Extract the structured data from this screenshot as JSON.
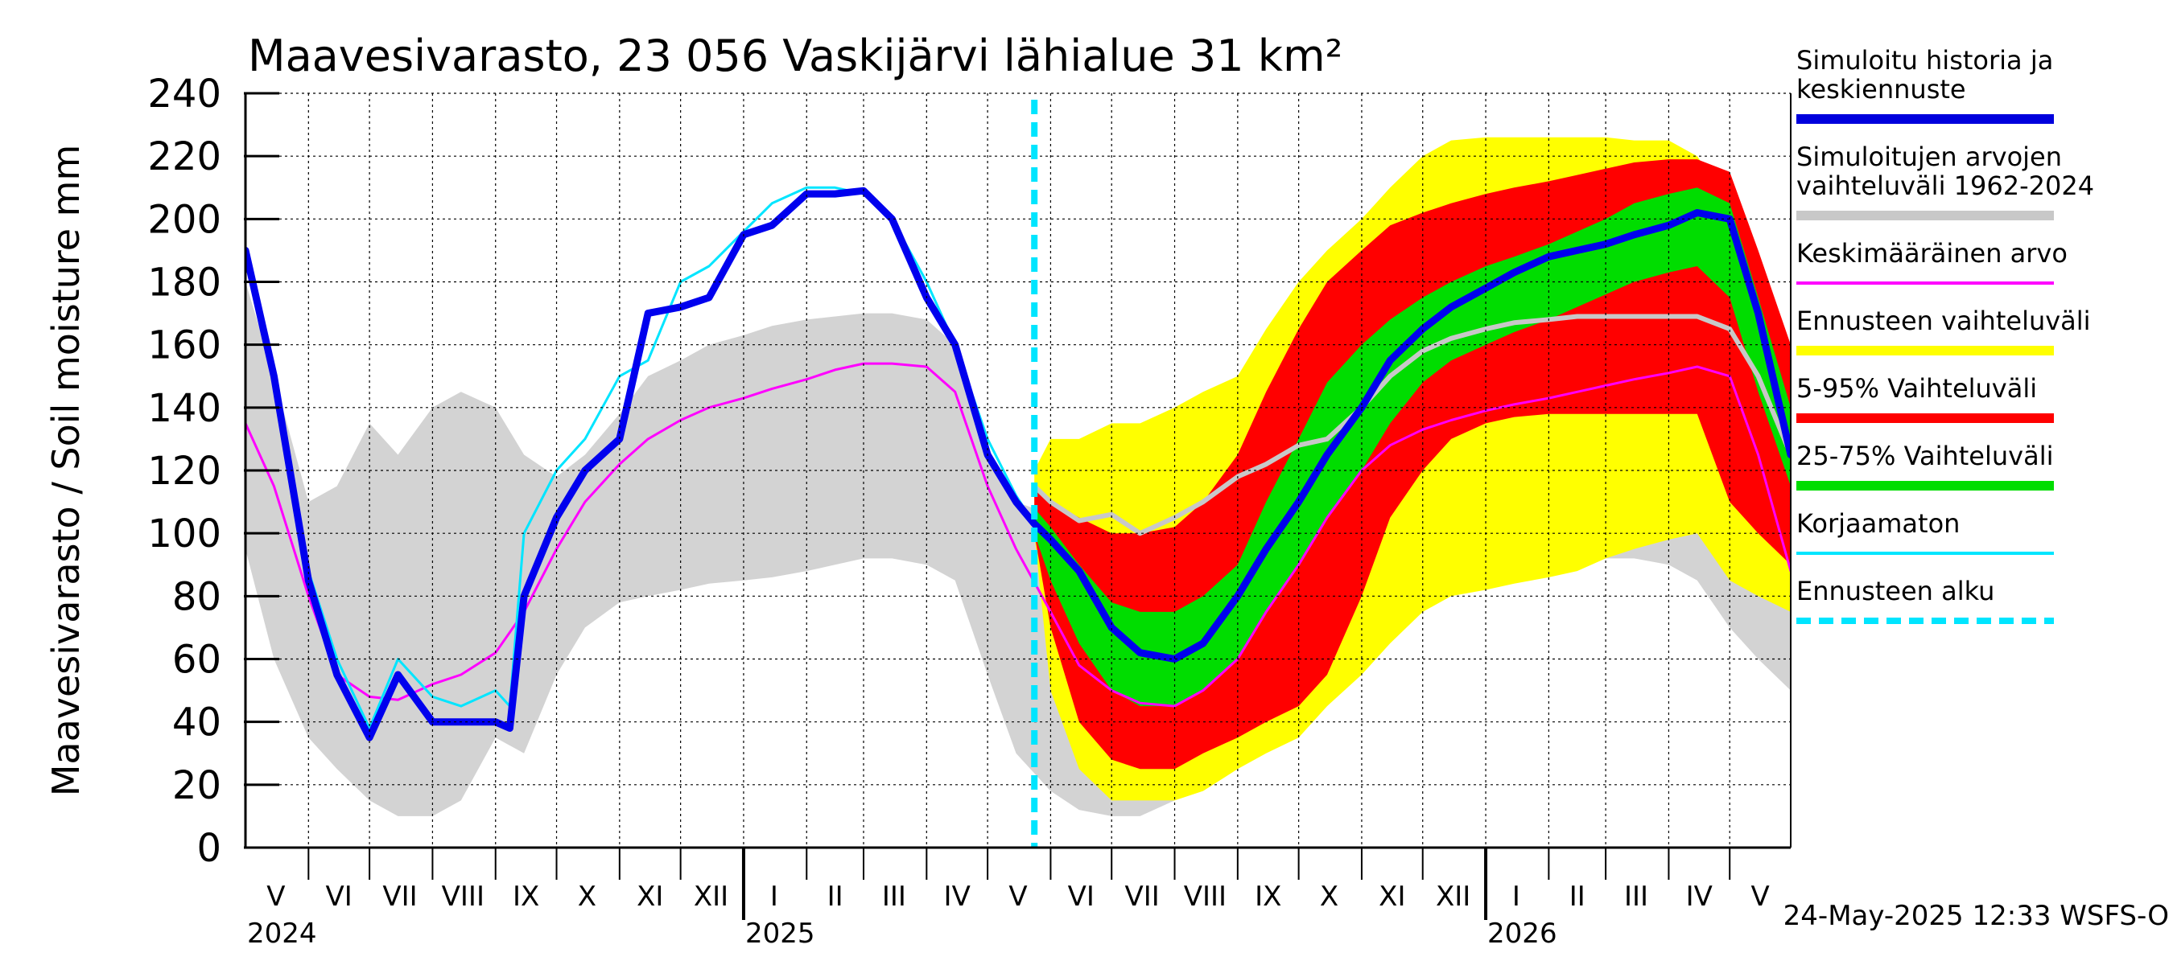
{
  "chart_data": {
    "type": "area",
    "title": "Maavesivarasto, 23 056 Vaskijärvi lähialue 31 km²",
    "ylabel": "Maavesivarasto / Soil moisture   mm",
    "ylim": [
      0,
      240
    ],
    "yticks": [
      "0",
      "20",
      "40",
      "60",
      "80",
      "100",
      "120",
      "140",
      "160",
      "180",
      "200",
      "220",
      "240"
    ],
    "xlim": [
      "2024-05-01",
      "2026-05-31"
    ],
    "grid": true,
    "legend_position": "right",
    "forecast_start": "2025-05-24",
    "footer": "24-May-2025 12:33 WSFS-O",
    "month_labels": [
      {
        "label": "V",
        "date": "2024-05-16"
      },
      {
        "label": "VI",
        "date": "2024-06-16"
      },
      {
        "label": "VII",
        "date": "2024-07-16"
      },
      {
        "label": "VIII",
        "date": "2024-08-16"
      },
      {
        "label": "IX",
        "date": "2024-09-16"
      },
      {
        "label": "X",
        "date": "2024-10-16"
      },
      {
        "label": "XI",
        "date": "2024-11-16"
      },
      {
        "label": "XII",
        "date": "2024-12-16"
      },
      {
        "label": "I",
        "date": "2025-01-16"
      },
      {
        "label": "II",
        "date": "2025-02-15"
      },
      {
        "label": "III",
        "date": "2025-03-16"
      },
      {
        "label": "IV",
        "date": "2025-04-16"
      },
      {
        "label": "V",
        "date": "2025-05-16"
      },
      {
        "label": "VI",
        "date": "2025-06-16"
      },
      {
        "label": "VII",
        "date": "2025-07-16"
      },
      {
        "label": "VIII",
        "date": "2025-08-16"
      },
      {
        "label": "IX",
        "date": "2025-09-16"
      },
      {
        "label": "X",
        "date": "2025-10-16"
      },
      {
        "label": "XI",
        "date": "2025-11-16"
      },
      {
        "label": "XII",
        "date": "2025-12-16"
      },
      {
        "label": "I",
        "date": "2026-01-16"
      },
      {
        "label": "II",
        "date": "2026-02-15"
      },
      {
        "label": "III",
        "date": "2026-03-16"
      },
      {
        "label": "IV",
        "date": "2026-04-16"
      },
      {
        "label": "V",
        "date": "2026-05-16"
      }
    ],
    "year_labels": [
      {
        "label": "2024",
        "date": "2024-05-01"
      },
      {
        "label": "2025",
        "date": "2025-01-01"
      },
      {
        "label": "2026",
        "date": "2026-01-01"
      }
    ],
    "legend": [
      {
        "label": "Simuloitu historia ja\nkeskiennuste",
        "color": "#0000dd",
        "style": "thick"
      },
      {
        "label": "Simuloitujen arvojen\nvaihteluväli 1962-2024",
        "color": "#c8c8c8",
        "style": "thick"
      },
      {
        "label": "Keskimääräinen arvo",
        "color": "#ff00ff",
        "style": "thin"
      },
      {
        "label": "Ennusteen vaihteluväli",
        "color": "#ffff00",
        "style": "thick"
      },
      {
        "label": "5-95% Vaihteluväli",
        "color": "#ff0000",
        "style": "thick"
      },
      {
        "label": "25-75% Vaihteluväli",
        "color": "#00dd00",
        "style": "thick"
      },
      {
        "label": "Korjaamaton",
        "color": "#00e5ff",
        "style": "thin"
      },
      {
        "label": "Ennusteen alku",
        "color": "#00e5ff",
        "style": "dashed"
      }
    ],
    "series": [
      {
        "name": "Simuloitujen arvojen vaihteluväli 1962-2024",
        "kind": "band",
        "color": "#d3d3d3",
        "x": [
          "2024-05-01",
          "2024-05-15",
          "2024-06-01",
          "2024-06-15",
          "2024-07-01",
          "2024-07-15",
          "2024-08-01",
          "2024-08-15",
          "2024-09-01",
          "2024-09-15",
          "2024-10-01",
          "2024-10-15",
          "2024-11-01",
          "2024-11-15",
          "2024-12-01",
          "2024-12-15",
          "2025-01-01",
          "2025-01-15",
          "2025-02-01",
          "2025-02-15",
          "2025-03-01",
          "2025-03-15",
          "2025-04-01",
          "2025-04-15",
          "2025-05-01",
          "2025-05-15",
          "2025-06-01",
          "2025-06-15",
          "2025-07-01",
          "2025-07-15",
          "2025-08-01",
          "2025-08-15",
          "2025-09-01",
          "2025-09-15",
          "2025-10-01",
          "2025-10-15",
          "2025-11-01",
          "2025-11-15",
          "2025-12-01",
          "2025-12-15",
          "2026-01-01",
          "2026-01-15",
          "2026-02-01",
          "2026-02-15",
          "2026-03-01",
          "2026-03-15",
          "2026-04-01",
          "2026-04-15",
          "2026-05-01",
          "2026-05-15",
          "2026-05-31"
        ],
        "lower": [
          95,
          60,
          35,
          25,
          15,
          10,
          10,
          15,
          35,
          30,
          55,
          70,
          78,
          80,
          82,
          84,
          85,
          86,
          88,
          90,
          92,
          92,
          90,
          85,
          55,
          30,
          18,
          12,
          10,
          10,
          15,
          20,
          30,
          35,
          45,
          55,
          65,
          75,
          80,
          82,
          84,
          86,
          88,
          90,
          92,
          92,
          90,
          85,
          70,
          60,
          50
        ],
        "upper": [
          180,
          150,
          110,
          115,
          135,
          125,
          140,
          145,
          140,
          125,
          118,
          125,
          138,
          150,
          155,
          160,
          163,
          166,
          168,
          169,
          170,
          170,
          168,
          160,
          125,
          110,
          106,
          104,
          104,
          106,
          112,
          118,
          128,
          138,
          148,
          156,
          162,
          166,
          167,
          168,
          169,
          170,
          170,
          170,
          170,
          170,
          170,
          168,
          150,
          130,
          110
        ]
      },
      {
        "name": "Ennusteen vaihteluväli",
        "kind": "band",
        "color": "#ffff00",
        "x": [
          "2025-05-24",
          "2025-06-01",
          "2025-06-15",
          "2025-07-01",
          "2025-07-15",
          "2025-08-01",
          "2025-08-15",
          "2025-09-01",
          "2025-09-15",
          "2025-10-01",
          "2025-10-15",
          "2025-11-01",
          "2025-11-15",
          "2025-12-01",
          "2025-12-15",
          "2026-01-01",
          "2026-01-15",
          "2026-02-01",
          "2026-02-15",
          "2026-03-01",
          "2026-03-15",
          "2026-04-01",
          "2026-04-15",
          "2026-05-01",
          "2026-05-15",
          "2026-05-31"
        ],
        "lower": [
          100,
          50,
          25,
          15,
          15,
          15,
          18,
          25,
          30,
          35,
          45,
          55,
          65,
          75,
          80,
          82,
          84,
          86,
          88,
          92,
          95,
          98,
          100,
          85,
          80,
          75
        ],
        "upper": [
          120,
          130,
          130,
          135,
          135,
          140,
          145,
          150,
          165,
          180,
          190,
          200,
          210,
          220,
          225,
          226,
          226,
          226,
          226,
          226,
          225,
          225,
          220,
          205,
          175,
          150
        ]
      },
      {
        "name": "5-95% Vaihteluväli",
        "kind": "band",
        "color": "#ff0000",
        "x": [
          "2025-05-24",
          "2025-06-01",
          "2025-06-15",
          "2025-07-01",
          "2025-07-15",
          "2025-08-01",
          "2025-08-15",
          "2025-09-01",
          "2025-09-15",
          "2025-10-01",
          "2025-10-15",
          "2025-11-01",
          "2025-11-15",
          "2025-12-01",
          "2025-12-15",
          "2026-01-01",
          "2026-01-15",
          "2026-02-01",
          "2026-02-15",
          "2026-03-01",
          "2026-03-15",
          "2026-04-01",
          "2026-04-15",
          "2026-05-01",
          "2026-05-15",
          "2026-05-31"
        ],
        "lower": [
          100,
          70,
          40,
          28,
          25,
          25,
          30,
          35,
          40,
          45,
          55,
          80,
          105,
          120,
          130,
          135,
          137,
          138,
          138,
          138,
          138,
          138,
          138,
          110,
          100,
          90
        ],
        "upper": [
          115,
          110,
          105,
          100,
          100,
          102,
          110,
          125,
          145,
          165,
          180,
          190,
          198,
          202,
          205,
          208,
          210,
          212,
          214,
          216,
          218,
          219,
          219,
          215,
          190,
          160
        ]
      },
      {
        "name": "25-75% Vaihteluväli",
        "kind": "band",
        "color": "#00dd00",
        "x": [
          "2025-05-24",
          "2025-06-01",
          "2025-06-15",
          "2025-07-01",
          "2025-07-15",
          "2025-08-01",
          "2025-08-15",
          "2025-09-01",
          "2025-09-15",
          "2025-10-01",
          "2025-10-15",
          "2025-11-01",
          "2025-11-15",
          "2025-12-01",
          "2025-12-15",
          "2026-01-01",
          "2026-01-15",
          "2026-02-01",
          "2026-02-15",
          "2026-03-01",
          "2026-03-15",
          "2026-04-01",
          "2026-04-15",
          "2026-05-01",
          "2026-05-15",
          "2026-05-31"
        ],
        "lower": [
          100,
          85,
          65,
          50,
          45,
          45,
          50,
          60,
          75,
          90,
          105,
          120,
          135,
          148,
          155,
          160,
          164,
          168,
          172,
          176,
          180,
          183,
          185,
          175,
          145,
          115
        ],
        "upper": [
          108,
          102,
          90,
          78,
          75,
          75,
          80,
          90,
          110,
          130,
          148,
          160,
          168,
          175,
          180,
          185,
          188,
          192,
          196,
          200,
          205,
          208,
          210,
          205,
          175,
          140
        ]
      },
      {
        "name": "Simuloitujen arvojen vaihteluväli (mediaani)",
        "kind": "line",
        "color": "#c8c8c8",
        "width": 6,
        "x": [
          "2025-05-24",
          "2025-06-01",
          "2025-06-15",
          "2025-07-01",
          "2025-07-15",
          "2025-08-01",
          "2025-08-15",
          "2025-09-01",
          "2025-09-15",
          "2025-10-01",
          "2025-10-15",
          "2025-11-01",
          "2025-11-15",
          "2025-12-01",
          "2025-12-15",
          "2026-01-01",
          "2026-01-15",
          "2026-02-01",
          "2026-02-15",
          "2026-03-01",
          "2026-03-15",
          "2026-04-01",
          "2026-04-15",
          "2026-05-01",
          "2026-05-15",
          "2026-05-31"
        ],
        "y": [
          115,
          110,
          104,
          106,
          100,
          105,
          110,
          118,
          122,
          128,
          130,
          140,
          150,
          158,
          162,
          165,
          167,
          168,
          169,
          169,
          169,
          169,
          169,
          165,
          150,
          125
        ]
      },
      {
        "name": "Keskimääräinen arvo",
        "kind": "line",
        "color": "#ff00ff",
        "width": 3,
        "x": [
          "2024-05-01",
          "2024-05-15",
          "2024-06-01",
          "2024-06-15",
          "2024-07-01",
          "2024-07-15",
          "2024-08-01",
          "2024-08-15",
          "2024-09-01",
          "2024-09-15",
          "2024-10-01",
          "2024-10-15",
          "2024-11-01",
          "2024-11-15",
          "2024-12-01",
          "2024-12-15",
          "2025-01-01",
          "2025-01-15",
          "2025-02-01",
          "2025-02-15",
          "2025-03-01",
          "2025-03-15",
          "2025-04-01",
          "2025-04-15",
          "2025-05-01",
          "2025-05-15",
          "2025-06-01",
          "2025-06-15",
          "2025-07-01",
          "2025-07-15",
          "2025-08-01",
          "2025-08-15",
          "2025-09-01",
          "2025-09-15",
          "2025-10-01",
          "2025-10-15",
          "2025-11-01",
          "2025-11-15",
          "2025-12-01",
          "2025-12-15",
          "2026-01-01",
          "2026-01-15",
          "2026-02-01",
          "2026-02-15",
          "2026-03-01",
          "2026-03-15",
          "2026-04-01",
          "2026-04-15",
          "2026-05-01",
          "2026-05-15",
          "2026-05-31"
        ],
        "y": [
          135,
          115,
          80,
          55,
          48,
          47,
          52,
          55,
          62,
          75,
          95,
          110,
          122,
          130,
          136,
          140,
          143,
          146,
          149,
          152,
          154,
          154,
          153,
          145,
          115,
          95,
          75,
          58,
          50,
          46,
          45,
          50,
          60,
          75,
          90,
          105,
          120,
          128,
          133,
          136,
          139,
          141,
          143,
          145,
          147,
          149,
          151,
          153,
          150,
          125,
          88
        ]
      },
      {
        "name": "Korjaamaton",
        "kind": "line",
        "color": "#00e5ff",
        "width": 3,
        "x": [
          "2024-05-01",
          "2024-05-15",
          "2024-06-01",
          "2024-06-15",
          "2024-07-01",
          "2024-07-15",
          "2024-08-01",
          "2024-08-15",
          "2024-09-01",
          "2024-09-08",
          "2024-09-15",
          "2024-10-01",
          "2024-10-15",
          "2024-11-01",
          "2024-11-15",
          "2024-12-01",
          "2024-12-15",
          "2025-01-01",
          "2025-01-15",
          "2025-02-01",
          "2025-02-15",
          "2025-03-01",
          "2025-03-15",
          "2025-04-01",
          "2025-04-15",
          "2025-05-01",
          "2025-05-15",
          "2025-05-24"
        ],
        "y": [
          190,
          150,
          88,
          60,
          38,
          60,
          48,
          45,
          50,
          45,
          100,
          120,
          130,
          150,
          155,
          180,
          185,
          196,
          205,
          210,
          210,
          208,
          200,
          180,
          160,
          130,
          112,
          103
        ]
      },
      {
        "name": "Simuloitu historia ja keskiennuste",
        "kind": "line",
        "color": "#0000ee",
        "width": 9,
        "x": [
          "2024-05-01",
          "2024-05-15",
          "2024-06-01",
          "2024-06-15",
          "2024-07-01",
          "2024-07-15",
          "2024-08-01",
          "2024-08-15",
          "2024-09-01",
          "2024-09-08",
          "2024-09-15",
          "2024-10-01",
          "2024-10-15",
          "2024-11-01",
          "2024-11-15",
          "2024-12-01",
          "2024-12-15",
          "2025-01-01",
          "2025-01-15",
          "2025-02-01",
          "2025-02-15",
          "2025-03-01",
          "2025-03-15",
          "2025-04-01",
          "2025-04-15",
          "2025-05-01",
          "2025-05-15",
          "2025-05-24",
          "2025-06-01",
          "2025-06-15",
          "2025-07-01",
          "2025-07-15",
          "2025-08-01",
          "2025-08-15",
          "2025-09-01",
          "2025-09-15",
          "2025-10-01",
          "2025-10-15",
          "2025-11-01",
          "2025-11-15",
          "2025-12-01",
          "2025-12-15",
          "2026-01-01",
          "2026-01-15",
          "2026-02-01",
          "2026-02-15",
          "2026-03-01",
          "2026-03-15",
          "2026-04-01",
          "2026-04-15",
          "2026-05-01",
          "2026-05-15",
          "2026-05-31"
        ],
        "y": [
          190,
          150,
          85,
          55,
          35,
          55,
          40,
          40,
          40,
          38,
          80,
          105,
          120,
          130,
          170,
          172,
          175,
          195,
          198,
          208,
          208,
          209,
          200,
          175,
          160,
          125,
          110,
          103,
          98,
          88,
          70,
          62,
          60,
          65,
          80,
          95,
          110,
          125,
          140,
          155,
          165,
          172,
          178,
          183,
          188,
          190,
          192,
          195,
          198,
          202,
          200,
          170,
          125
        ]
      }
    ]
  }
}
